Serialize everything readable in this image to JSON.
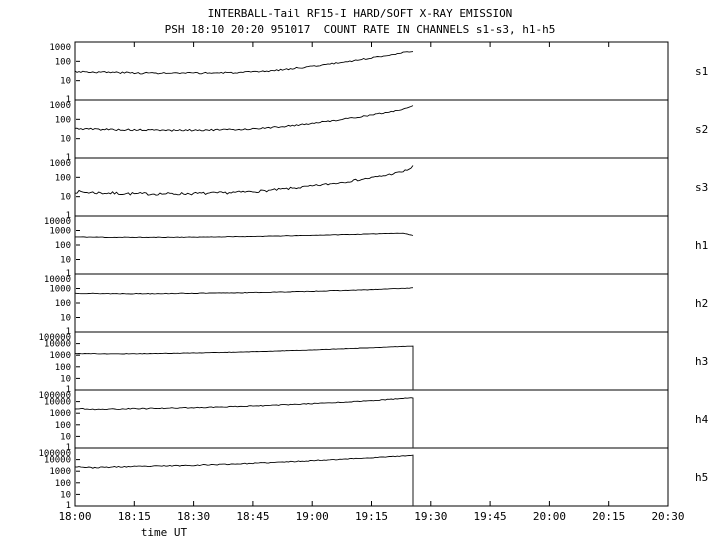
{
  "chart_data": {
    "type": "line",
    "title": "INTERBALL-Tail RF15-I HARD/SOFT X-RAY EMISSION",
    "subtitle": "PSH 18:10 20:20 951017  COUNT RATE IN CHANNELS s1-s3, h1-h5",
    "xlabel": "time UT",
    "ylabel": "",
    "x_range_minutes": [
      0,
      150
    ],
    "x_tick_minutes": [
      0,
      15,
      30,
      45,
      60,
      75,
      90,
      105,
      120,
      135,
      150
    ],
    "x_tick_labels": [
      "18:00",
      "18:15",
      "18:30",
      "18:45",
      "19:00",
      "19:15",
      "19:30",
      "19:45",
      "20:00",
      "20:15",
      "20:30"
    ],
    "data_end_minute": 85.5,
    "grid": false,
    "legend": "none",
    "panels": [
      {
        "label": "s1",
        "decades": 3,
        "y_ticks": [
          1000,
          100,
          10,
          1
        ],
        "noise": 0.05,
        "seed": 3,
        "end_drop": false,
        "points": [
          [
            0,
            30
          ],
          [
            5,
            28
          ],
          [
            15,
            25
          ],
          [
            25,
            24
          ],
          [
            35,
            25
          ],
          [
            42,
            26
          ],
          [
            48,
            30
          ],
          [
            54,
            40
          ],
          [
            60,
            55
          ],
          [
            66,
            80
          ],
          [
            72,
            120
          ],
          [
            78,
            190
          ],
          [
            83,
            280
          ],
          [
            85.5,
            330
          ]
        ]
      },
      {
        "label": "s2",
        "decades": 3,
        "y_ticks": [
          1000,
          100,
          10,
          1
        ],
        "noise": 0.05,
        "seed": 5,
        "end_drop": false,
        "points": [
          [
            0,
            33
          ],
          [
            5,
            31
          ],
          [
            15,
            28
          ],
          [
            25,
            27
          ],
          [
            35,
            28
          ],
          [
            42,
            30
          ],
          [
            48,
            35
          ],
          [
            54,
            45
          ],
          [
            60,
            62
          ],
          [
            66,
            90
          ],
          [
            72,
            135
          ],
          [
            78,
            210
          ],
          [
            83,
            330
          ],
          [
            85,
            450
          ],
          [
            85.5,
            520
          ]
        ]
      },
      {
        "label": "s3",
        "decades": 3,
        "y_ticks": [
          1000,
          100,
          10,
          1
        ],
        "noise": 0.08,
        "seed": 7,
        "end_drop": false,
        "points": [
          [
            0,
            18
          ],
          [
            5,
            16
          ],
          [
            15,
            14
          ],
          [
            25,
            14
          ],
          [
            35,
            15
          ],
          [
            42,
            17
          ],
          [
            48,
            20
          ],
          [
            54,
            26
          ],
          [
            60,
            35
          ],
          [
            66,
            50
          ],
          [
            72,
            75
          ],
          [
            78,
            120
          ],
          [
            83,
            200
          ],
          [
            85,
            300
          ],
          [
            85.5,
            380
          ]
        ]
      },
      {
        "label": "h1",
        "decades": 4,
        "y_ticks": [
          10000,
          1000,
          100,
          10,
          1
        ],
        "noise": 0.02,
        "seed": 11,
        "end_drop": false,
        "points": [
          [
            0,
            360
          ],
          [
            8,
            340
          ],
          [
            18,
            335
          ],
          [
            28,
            345
          ],
          [
            38,
            365
          ],
          [
            48,
            400
          ],
          [
            58,
            450
          ],
          [
            68,
            520
          ],
          [
            75,
            580
          ],
          [
            80,
            640
          ],
          [
            83,
            650
          ],
          [
            84.5,
            520
          ],
          [
            85.5,
            460
          ]
        ]
      },
      {
        "label": "h2",
        "decades": 4,
        "y_ticks": [
          10000,
          1000,
          100,
          10,
          1
        ],
        "noise": 0.025,
        "seed": 13,
        "end_drop": false,
        "points": [
          [
            0,
            470
          ],
          [
            8,
            440
          ],
          [
            18,
            440
          ],
          [
            28,
            460
          ],
          [
            38,
            490
          ],
          [
            48,
            540
          ],
          [
            58,
            620
          ],
          [
            68,
            730
          ],
          [
            75,
            830
          ],
          [
            80,
            950
          ],
          [
            85.5,
            1100
          ]
        ]
      },
      {
        "label": "h3",
        "decades": 5,
        "y_ticks": [
          100000,
          10000,
          1000,
          100,
          10,
          1
        ],
        "noise": 0.02,
        "seed": 17,
        "end_drop": true,
        "points": [
          [
            0,
            1400
          ],
          [
            8,
            1300
          ],
          [
            18,
            1350
          ],
          [
            28,
            1500
          ],
          [
            38,
            1750
          ],
          [
            48,
            2100
          ],
          [
            58,
            2700
          ],
          [
            68,
            3600
          ],
          [
            75,
            4400
          ],
          [
            80,
            5200
          ],
          [
            85.5,
            6200
          ]
        ]
      },
      {
        "label": "h4",
        "decades": 5,
        "y_ticks": [
          100000,
          10000,
          1000,
          100,
          10,
          1
        ],
        "noise": 0.045,
        "seed": 19,
        "end_drop": true,
        "points": [
          [
            0,
            2500
          ],
          [
            4,
            2100
          ],
          [
            10,
            2300
          ],
          [
            18,
            2500
          ],
          [
            28,
            2900
          ],
          [
            38,
            3500
          ],
          [
            48,
            4500
          ],
          [
            58,
            6200
          ],
          [
            68,
            9000
          ],
          [
            75,
            12000
          ],
          [
            80,
            16000
          ],
          [
            85.5,
            21000
          ]
        ]
      },
      {
        "label": "h5",
        "decades": 5,
        "y_ticks": [
          100000,
          10000,
          1000,
          100,
          10,
          1
        ],
        "noise": 0.05,
        "seed": 23,
        "end_drop": true,
        "points": [
          [
            0,
            2600
          ],
          [
            4,
            2000
          ],
          [
            10,
            2300
          ],
          [
            18,
            2600
          ],
          [
            28,
            3100
          ],
          [
            38,
            3900
          ],
          [
            48,
            5200
          ],
          [
            58,
            7500
          ],
          [
            68,
            11000
          ],
          [
            75,
            14500
          ],
          [
            80,
            18000
          ],
          [
            85.5,
            23000
          ]
        ]
      }
    ]
  }
}
